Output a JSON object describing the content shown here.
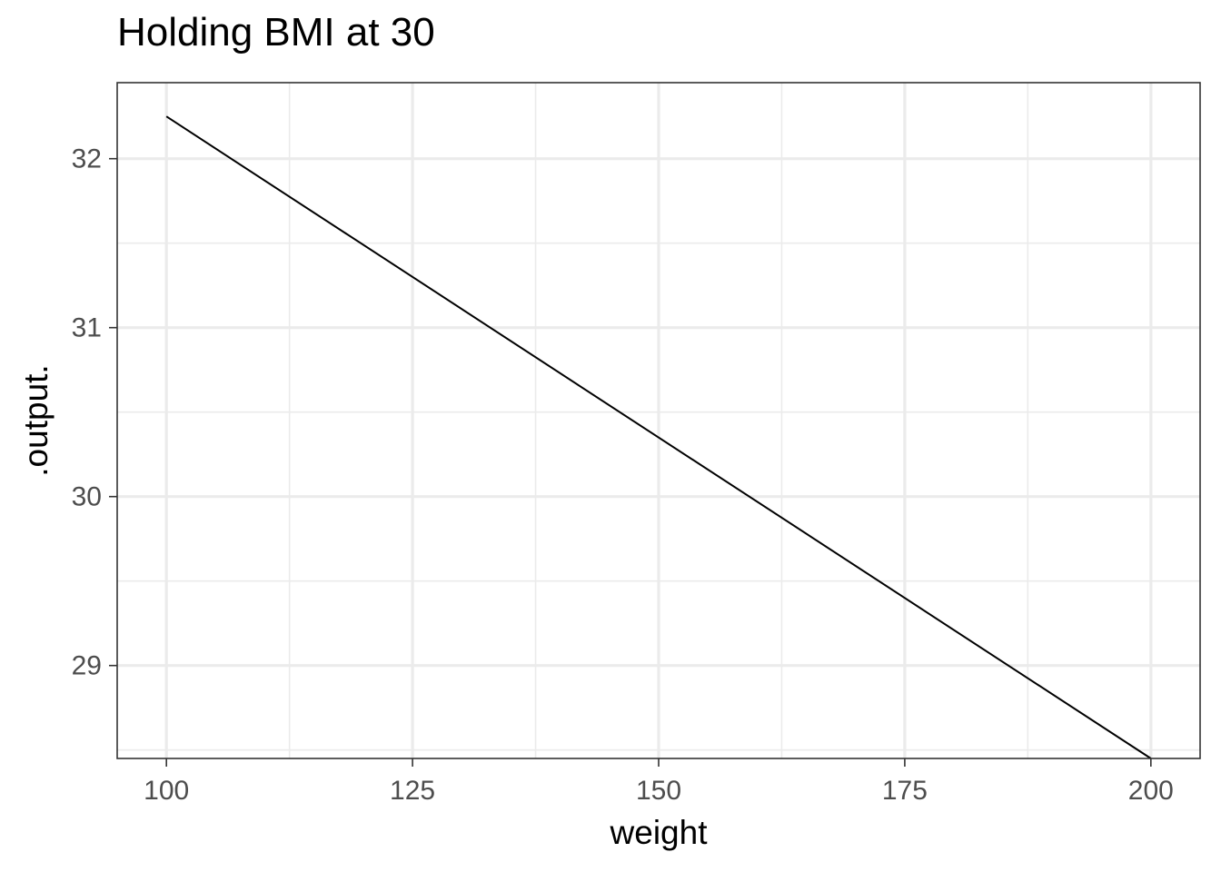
{
  "chart_data": {
    "type": "line",
    "title": "Holding BMI at 30",
    "xlabel": "weight",
    "ylabel": ".output.",
    "xlim": [
      95,
      205
    ],
    "ylim": [
      28.45,
      32.45
    ],
    "x_ticks": [
      100,
      125,
      150,
      175,
      200
    ],
    "y_ticks": [
      29,
      30,
      31,
      32
    ],
    "x_minor": [
      112.5,
      137.5,
      162.5,
      187.5
    ],
    "y_minor": [
      28.5,
      29.5,
      30.5,
      31.5
    ],
    "grid": true,
    "series": [
      {
        "x": [
          100,
          200
        ],
        "values": [
          32.25,
          28.45
        ],
        "color": "#000000"
      }
    ]
  }
}
